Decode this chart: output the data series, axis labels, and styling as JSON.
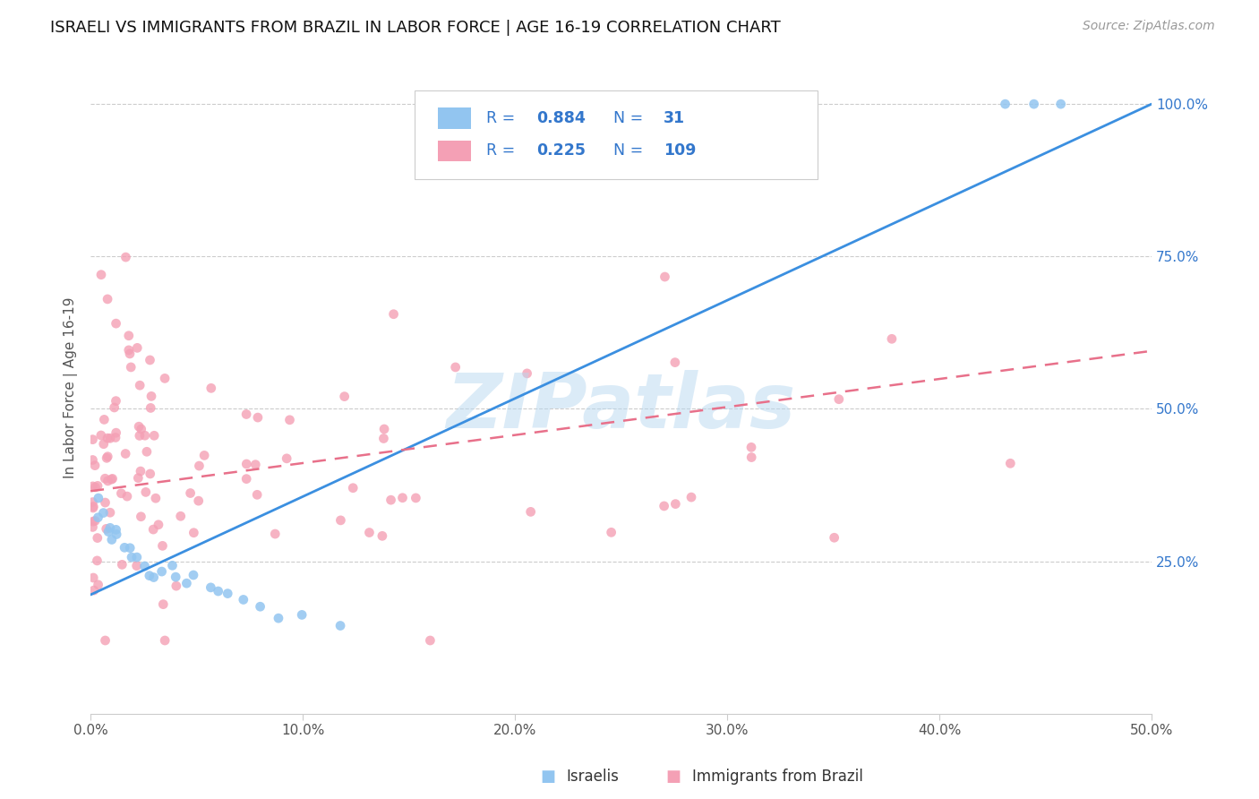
{
  "title": "ISRAELI VS IMMIGRANTS FROM BRAZIL IN LABOR FORCE | AGE 16-19 CORRELATION CHART",
  "source": "Source: ZipAtlas.com",
  "ylabel": "In Labor Force | Age 16-19",
  "xmin": 0.0,
  "xmax": 0.5,
  "ymin": 0.0,
  "ymax": 1.07,
  "xtick_labels": [
    "0.0%",
    "10.0%",
    "20.0%",
    "30.0%",
    "40.0%",
    "50.0%"
  ],
  "xtick_vals": [
    0.0,
    0.1,
    0.2,
    0.3,
    0.4,
    0.5
  ],
  "ytick_labels_right": [
    "25.0%",
    "50.0%",
    "75.0%",
    "100.0%"
  ],
  "ytick_vals_right": [
    0.25,
    0.5,
    0.75,
    1.0
  ],
  "legend_label_blue": "Israelis",
  "legend_label_pink": "Immigrants from Brazil",
  "R_blue": "0.884",
  "N_blue": "31",
  "R_pink": "0.225",
  "N_pink": "109",
  "color_blue": "#92C5F0",
  "color_pink": "#F4A0B5",
  "color_line_blue": "#3B8FE0",
  "color_line_pink": "#E8708A",
  "color_blue_text": "#3377CC",
  "watermark_text": "ZIPatlas",
  "watermark_color": "#B8D8F0",
  "watermark_alpha": 0.5,
  "blue_line_x0": 0.0,
  "blue_line_y0": 0.195,
  "blue_line_x1": 0.5,
  "blue_line_y1": 1.0,
  "pink_line_x0": 0.0,
  "pink_line_y0": 0.365,
  "pink_line_x1": 0.5,
  "pink_line_y1": 0.595
}
